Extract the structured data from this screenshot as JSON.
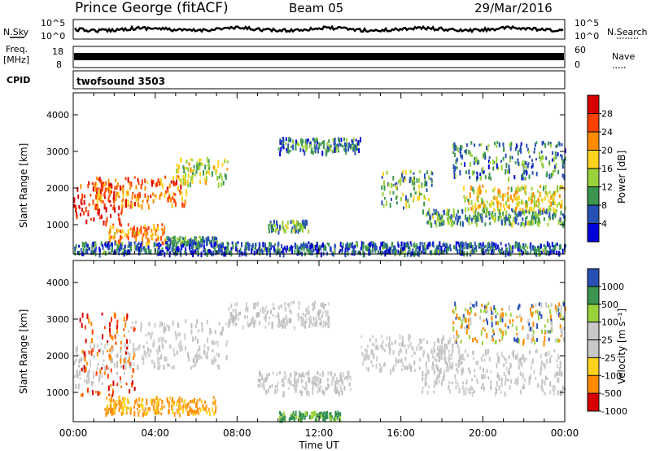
{
  "header": {
    "station": "Prince George (fitACF)",
    "beam": "Beam 05",
    "date": "29/Mar/2016"
  },
  "side_labels": {
    "nsky": "N.Sky",
    "freq_top": "Freq.",
    "freq_unit": "[MHz]",
    "cpid": "CPID",
    "nsearch": "N.Search",
    "nave": "Nave"
  },
  "strips": {
    "noise_ticks_left": [
      "10^5",
      "10^0"
    ],
    "noise_ticks_right": [
      "10^5",
      "10^0"
    ],
    "freq_ticks_left": [
      "18",
      "8"
    ],
    "nave_ticks_right": [
      "60",
      "0"
    ],
    "cpid_text": "twofsound 3503"
  },
  "chart_data": [
    {
      "type": "heatmap",
      "panel": "power",
      "ylabel": "Slant Range [km]",
      "xlabel": "",
      "x_ticks": [
        "00:00",
        "04:00",
        "08:00",
        "12:00",
        "16:00",
        "20:00",
        "00:00"
      ],
      "y_ticks": [
        1000,
        2000,
        3000,
        4000
      ],
      "ylim": [
        200,
        4600
      ],
      "xlim_hours": [
        0,
        24
      ],
      "colorbar": {
        "label": "Power [dB]",
        "ticks": [
          "28",
          "24",
          "20",
          "16",
          "12",
          "8",
          "4"
        ],
        "colors": [
          "#d80000",
          "#ff4000",
          "#ff8c00",
          "#ffd21e",
          "#9ad23c",
          "#3c9650",
          "#2850b4",
          "#0000d8"
        ]
      },
      "echo_bands": [
        {
          "t0": 0.0,
          "t1": 2.4,
          "r0": 1100,
          "r1": 2200,
          "level": 0.95
        },
        {
          "t0": 1.0,
          "t1": 5.5,
          "r0": 1550,
          "r1": 2350,
          "level": 0.75
        },
        {
          "t0": 5.0,
          "t1": 7.5,
          "r0": 2150,
          "r1": 2850,
          "level": 0.45
        },
        {
          "t0": 1.5,
          "t1": 4.5,
          "r0": 500,
          "r1": 1050,
          "level": 0.7
        },
        {
          "t0": 4.5,
          "t1": 7.0,
          "r0": 500,
          "r1": 700,
          "level": 0.3
        },
        {
          "t0": 9.5,
          "t1": 11.5,
          "r0": 850,
          "r1": 1150,
          "level": 0.3
        },
        {
          "t0": 10.0,
          "t1": 14.0,
          "r0": 3000,
          "r1": 3400,
          "level": 0.2
        },
        {
          "t0": 15.0,
          "t1": 17.5,
          "r0": 1500,
          "r1": 2500,
          "level": 0.35
        },
        {
          "t0": 17.0,
          "t1": 24.0,
          "r0": 1050,
          "r1": 1450,
          "level": 0.3
        },
        {
          "t0": 19.0,
          "t1": 24.0,
          "r0": 1450,
          "r1": 2100,
          "level": 0.55
        },
        {
          "t0": 18.5,
          "t1": 24.0,
          "r0": 2300,
          "r1": 3300,
          "level": 0.25
        },
        {
          "t0": 0.0,
          "t1": 24.0,
          "r0": 250,
          "r1": 550,
          "level": 0.15
        }
      ]
    },
    {
      "type": "heatmap",
      "panel": "velocity",
      "ylabel": "Slant Range [km]",
      "xlabel": "Time UT",
      "x_ticks": [
        "00:00",
        "04:00",
        "08:00",
        "12:00",
        "16:00",
        "20:00",
        "00:00"
      ],
      "y_ticks": [
        1000,
        2000,
        3000,
        4000
      ],
      "ylim": [
        200,
        4600
      ],
      "xlim_hours": [
        0,
        24
      ],
      "colorbar": {
        "label": "Velocity [m s⁻¹]",
        "ticks": [
          "1000",
          "500",
          "100",
          "25",
          "-25",
          "-100",
          "-500",
          "-1000"
        ],
        "colors": [
          "#2850b4",
          "#3c9650",
          "#9ad23c",
          "#c8c8c8",
          "#c8c8c8",
          "#ffd21e",
          "#ff8c00",
          "#d80000"
        ]
      },
      "echo_bands": [
        {
          "t0": 0.0,
          "t1": 2.5,
          "r0": 1200,
          "r1": 2400,
          "level": "grey"
        },
        {
          "t0": 2.5,
          "t1": 7.5,
          "r0": 1700,
          "r1": 3000,
          "level": "grey"
        },
        {
          "t0": 7.5,
          "t1": 12.5,
          "r0": 2800,
          "r1": 3500,
          "level": "grey"
        },
        {
          "t0": 0.3,
          "t1": 3.0,
          "r0": 900,
          "r1": 3200,
          "level": "red"
        },
        {
          "t0": 1.5,
          "t1": 7.0,
          "r0": 450,
          "r1": 900,
          "level": "orange"
        },
        {
          "t0": 9.0,
          "t1": 13.5,
          "r0": 1000,
          "r1": 1600,
          "level": "grey"
        },
        {
          "t0": 10.0,
          "t1": 13.0,
          "r0": 300,
          "r1": 500,
          "level": "green"
        },
        {
          "t0": 14.0,
          "t1": 19.0,
          "r0": 1600,
          "r1": 2600,
          "level": "grey"
        },
        {
          "t0": 17.0,
          "t1": 24.0,
          "r0": 1000,
          "r1": 2200,
          "level": "grey"
        },
        {
          "t0": 18.5,
          "t1": 24.0,
          "r0": 2400,
          "r1": 3500,
          "level": "mixed"
        }
      ]
    }
  ]
}
